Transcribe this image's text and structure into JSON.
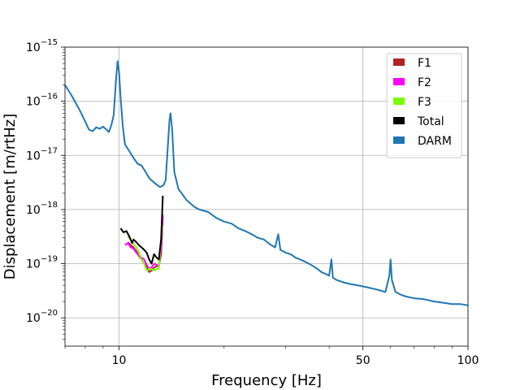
{
  "chart_data": {
    "type": "line",
    "title": "",
    "xlabel": "Frequency [Hz]",
    "ylabel": "Displacement [m/rtHz]",
    "xscale": "log",
    "yscale": "log",
    "xlim": [
      7,
      100
    ],
    "ylim": [
      3e-21,
      1e-15
    ],
    "grid": true,
    "legend_position": "top-right",
    "x_ticks": [
      {
        "value": 10,
        "label": "10"
      },
      {
        "value": 50,
        "label": "50"
      },
      {
        "value": 100,
        "label": "100"
      }
    ],
    "y_ticks": [
      {
        "value": 1e-20,
        "base": "10",
        "exp": "−20"
      },
      {
        "value": 1e-19,
        "base": "10",
        "exp": "−19"
      },
      {
        "value": 1e-18,
        "base": "10",
        "exp": "−18"
      },
      {
        "value": 1e-17,
        "base": "10",
        "exp": "−17"
      },
      {
        "value": 1e-16,
        "base": "10",
        "exp": "−16"
      },
      {
        "value": 1e-15,
        "base": "10",
        "exp": "−15"
      }
    ],
    "series": [
      {
        "name": "DARM",
        "color": "#1f77b4",
        "points": [
          [
            7.0,
            2e-16
          ],
          [
            7.3,
            1.3e-16
          ],
          [
            7.7,
            7e-17
          ],
          [
            8.0,
            4.2e-17
          ],
          [
            8.2,
            3e-17
          ],
          [
            8.4,
            2.8e-17
          ],
          [
            8.6,
            3.3e-17
          ],
          [
            8.8,
            3.1e-17
          ],
          [
            9.0,
            3.4e-17
          ],
          [
            9.2,
            3e-17
          ],
          [
            9.35,
            2.7e-17
          ],
          [
            9.5,
            3.6e-17
          ],
          [
            9.65,
            5.5e-17
          ],
          [
            9.8,
            2.5e-16
          ],
          [
            9.9,
            5.5e-16
          ],
          [
            10.0,
            3.5e-16
          ],
          [
            10.1,
            1.2e-16
          ],
          [
            10.25,
            3.5e-17
          ],
          [
            10.4,
            1.6e-17
          ],
          [
            10.7,
            1.2e-17
          ],
          [
            11.0,
            9e-18
          ],
          [
            11.3,
            7e-18
          ],
          [
            11.6,
            6.5e-18
          ],
          [
            11.9,
            5e-18
          ],
          [
            12.2,
            3.8e-18
          ],
          [
            12.5,
            3.3e-18
          ],
          [
            12.8,
            2.9e-18
          ],
          [
            13.1,
            2.6e-18
          ],
          [
            13.4,
            2.8e-18
          ],
          [
            13.6,
            3.5e-18
          ],
          [
            13.8,
            1.5e-17
          ],
          [
            13.95,
            4.5e-17
          ],
          [
            14.05,
            6e-17
          ],
          [
            14.2,
            3e-17
          ],
          [
            14.4,
            5e-18
          ],
          [
            14.8,
            2.4e-18
          ],
          [
            15.2,
            1.9e-18
          ],
          [
            15.6,
            1.5e-18
          ],
          [
            16.0,
            1.3e-18
          ],
          [
            16.5,
            1.1e-18
          ],
          [
            17.0,
            1e-18
          ],
          [
            18.0,
            9e-19
          ],
          [
            19.0,
            7e-19
          ],
          [
            20.0,
            6e-19
          ],
          [
            21.0,
            5.5e-19
          ],
          [
            22.0,
            4.5e-19
          ],
          [
            23.0,
            4e-19
          ],
          [
            24.0,
            3.5e-19
          ],
          [
            25.0,
            3e-19
          ],
          [
            26.0,
            2.8e-19
          ],
          [
            27.0,
            2.3e-19
          ],
          [
            28.0,
            2e-19
          ],
          [
            28.6,
            3.5e-19
          ],
          [
            29.0,
            1.8e-19
          ],
          [
            30.0,
            1.6e-19
          ],
          [
            31.0,
            1.5e-19
          ],
          [
            32.0,
            1.3e-19
          ],
          [
            33.0,
            1.2e-19
          ],
          [
            34.0,
            1.1e-19
          ],
          [
            35.0,
            1e-19
          ],
          [
            36.0,
            9e-20
          ],
          [
            37.0,
            8e-20
          ],
          [
            38.0,
            7e-20
          ],
          [
            39.0,
            6.5e-20
          ],
          [
            40.0,
            6e-20
          ],
          [
            40.6,
            1.2e-19
          ],
          [
            41.0,
            5.5e-20
          ],
          [
            42.0,
            5e-20
          ],
          [
            44.0,
            4.5e-20
          ],
          [
            46.0,
            4.2e-20
          ],
          [
            48.0,
            4e-20
          ],
          [
            50.0,
            3.8e-20
          ],
          [
            52.0,
            3.6e-20
          ],
          [
            54.0,
            3.4e-20
          ],
          [
            56.0,
            3.2e-20
          ],
          [
            58.0,
            3e-20
          ],
          [
            59.5,
            6e-20
          ],
          [
            60.0,
            1.2e-19
          ],
          [
            60.5,
            5e-20
          ],
          [
            62.0,
            3e-20
          ],
          [
            64.0,
            2.7e-20
          ],
          [
            66.0,
            2.5e-20
          ],
          [
            70.0,
            2.3e-20
          ],
          [
            75.0,
            2.2e-20
          ],
          [
            80.0,
            2e-20
          ],
          [
            85.0,
            1.9e-20
          ],
          [
            90.0,
            1.8e-20
          ],
          [
            95.0,
            1.8e-20
          ],
          [
            100.0,
            1.7e-20
          ]
        ]
      },
      {
        "name": "F1",
        "color": "#b22222",
        "points": [
          [
            10.6,
            2.5e-19
          ],
          [
            10.8,
            2.2e-19
          ],
          [
            11.0,
            2e-19
          ],
          [
            11.2,
            1.7e-19
          ],
          [
            11.4,
            1.4e-19
          ],
          [
            11.6,
            1.2e-19
          ],
          [
            11.8,
            1e-19
          ],
          [
            12.0,
            9e-20
          ],
          [
            12.2,
            7e-20
          ],
          [
            12.4,
            7.5e-20
          ],
          [
            12.6,
            8.5e-20
          ],
          [
            12.8,
            9e-20
          ],
          [
            13.0,
            9e-20
          ],
          [
            13.2,
            1.5e-19
          ],
          [
            13.35,
            7e-19
          ]
        ]
      },
      {
        "name": "F2",
        "color": "#ff00ff",
        "points": [
          [
            10.4,
            2.2e-19
          ],
          [
            10.6,
            2.4e-19
          ],
          [
            10.8,
            2e-19
          ],
          [
            11.0,
            1.9e-19
          ],
          [
            11.2,
            1.6e-19
          ],
          [
            11.4,
            1.4e-19
          ],
          [
            11.6,
            1.3e-19
          ],
          [
            11.8,
            1.2e-19
          ],
          [
            12.0,
            9.5e-20
          ],
          [
            12.2,
            8e-20
          ],
          [
            12.4,
            8.5e-20
          ],
          [
            12.6,
            1e-19
          ],
          [
            12.8,
            9.5e-20
          ],
          [
            13.0,
            9e-20
          ],
          [
            13.2,
            2e-19
          ],
          [
            13.35,
            8e-19
          ]
        ]
      },
      {
        "name": "F3",
        "color": "#7cfc00",
        "points": [
          [
            10.6,
            3.2e-19
          ],
          [
            10.8,
            2.8e-19
          ],
          [
            11.0,
            2.3e-19
          ],
          [
            11.2,
            2e-19
          ],
          [
            11.4,
            1.6e-19
          ],
          [
            11.6,
            1.2e-19
          ],
          [
            11.8,
            1e-19
          ],
          [
            12.0,
            7.5e-20
          ],
          [
            12.2,
            8e-20
          ],
          [
            12.4,
            8e-20
          ],
          [
            12.6,
            7.5e-20
          ],
          [
            12.8,
            8e-20
          ],
          [
            13.0,
            8e-20
          ],
          [
            13.2,
            3e-19
          ],
          [
            13.3,
            5e-19
          ]
        ]
      },
      {
        "name": "Total",
        "color": "#000000",
        "points": [
          [
            10.1,
            4.5e-19
          ],
          [
            10.3,
            3.8e-19
          ],
          [
            10.5,
            4e-19
          ],
          [
            10.7,
            3.2e-19
          ],
          [
            10.9,
            2.4e-19
          ],
          [
            11.0,
            2.8e-19
          ],
          [
            11.2,
            2.5e-19
          ],
          [
            11.4,
            2.2e-19
          ],
          [
            11.6,
            2e-19
          ],
          [
            11.8,
            1.8e-19
          ],
          [
            12.0,
            1.6e-19
          ],
          [
            12.2,
            1.2e-19
          ],
          [
            12.4,
            1e-19
          ],
          [
            12.6,
            1.5e-19
          ],
          [
            12.8,
            1.3e-19
          ],
          [
            13.0,
            1.2e-19
          ],
          [
            13.2,
            2.8e-19
          ],
          [
            13.35,
            1.8e-18
          ]
        ]
      }
    ]
  },
  "legend": {
    "entries": [
      {
        "label": "F1",
        "color": "#b22222"
      },
      {
        "label": "F2",
        "color": "#ff00ff"
      },
      {
        "label": "F3",
        "color": "#7cfc00"
      },
      {
        "label": "Total",
        "color": "#000000"
      },
      {
        "label": "DARM",
        "color": "#1f77b4"
      }
    ]
  }
}
